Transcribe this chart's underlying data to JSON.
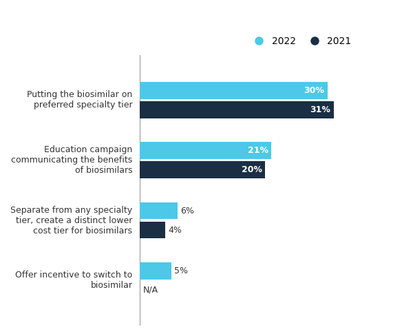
{
  "categories": [
    "Putting the biosimilar on\npreferred specialty tier",
    "Education campaign\ncommunicating the benefits\nof biosimilars",
    "Separate from any specialty\ntier, create a distinct lower\ncost tier for biosimilars",
    "Offer incentive to switch to\nbiosimilar"
  ],
  "values_2022": [
    30,
    21,
    6,
    5
  ],
  "values_2021": [
    31,
    20,
    4,
    0
  ],
  "labels_2022": [
    "30%",
    "21%",
    "6%",
    "5%"
  ],
  "labels_2021": [
    "31%",
    "20%",
    "4%",
    "N/A"
  ],
  "color_2022": "#4DC8E8",
  "color_2021": "#1A2E44",
  "bar_height": 0.28,
  "background_color": "#ffffff",
  "legend_2022": "2022",
  "legend_2021": "2021",
  "font_color": "#333333",
  "label_color_inside_2022": "#ffffff",
  "label_color_inside_2021": "#ffffff",
  "label_color_outside": "#333333",
  "spine_color": "#999999",
  "threshold": 8
}
